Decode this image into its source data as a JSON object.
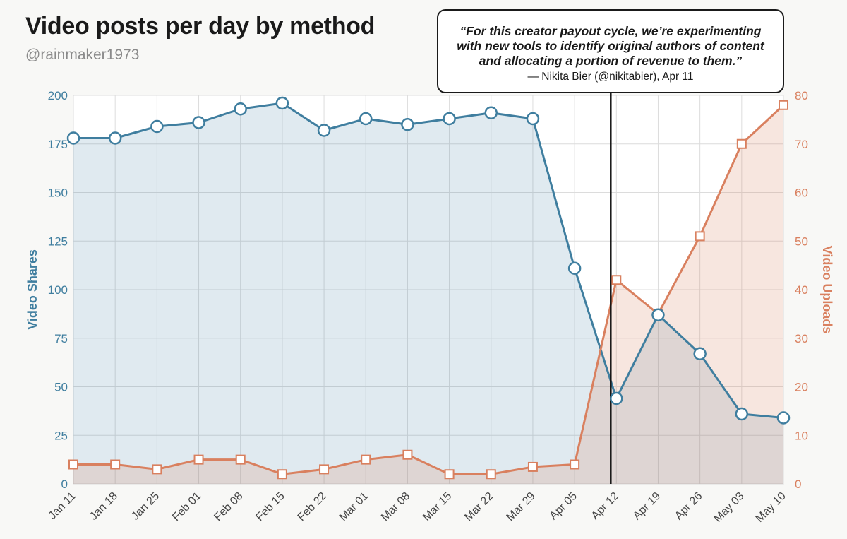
{
  "header": {
    "title": "Video posts per day by method",
    "subtitle": "@rainmaker1973"
  },
  "annotation": {
    "quote": "“For this creator payout cycle, we’re experimenting with new tools to identify original authors of content and allocating a portion of revenue to them.”",
    "attribution": "— Nikita Bier (@nikitabier), Apr 11",
    "marker_x": "Apr 12"
  },
  "chart_data": {
    "type": "line",
    "title": "Video posts per day by method",
    "subtitle": "@rainmaker1973",
    "categories": [
      "Jan 11",
      "Jan 18",
      "Jan 25",
      "Feb 01",
      "Feb 08",
      "Feb 15",
      "Feb 22",
      "Mar 01",
      "Mar 08",
      "Mar 15",
      "Mar 22",
      "Mar 29",
      "Apr 05",
      "Apr 12",
      "Apr 19",
      "Apr 26",
      "May 03",
      "May 10"
    ],
    "series": [
      {
        "name": "Video Shares",
        "axis": "left",
        "color": "#3f7e9f",
        "marker": "circle",
        "area": true,
        "values": [
          178,
          178,
          184,
          186,
          193,
          196,
          182,
          188,
          185,
          188,
          191,
          188,
          111,
          44,
          87,
          67,
          36,
          34
        ]
      },
      {
        "name": "Video Uploads",
        "axis": "right",
        "color": "#d9805f",
        "marker": "square",
        "area": true,
        "values": [
          4,
          4,
          3,
          5,
          5,
          2,
          3,
          5,
          6,
          2,
          2,
          3.5,
          4,
          42,
          35,
          51,
          70,
          78
        ]
      }
    ],
    "y_left": {
      "label": "Video Shares",
      "range": [
        0,
        200
      ],
      "ticks": [
        0,
        25,
        50,
        75,
        100,
        125,
        150,
        175,
        200
      ],
      "color": "#3f7e9f"
    },
    "y_right": {
      "label": "Video Uploads",
      "range": [
        0,
        80
      ],
      "ticks": [
        0,
        10,
        20,
        30,
        40,
        50,
        60,
        70,
        80
      ],
      "color": "#d9805f"
    },
    "grid": true,
    "legend": "none"
  }
}
